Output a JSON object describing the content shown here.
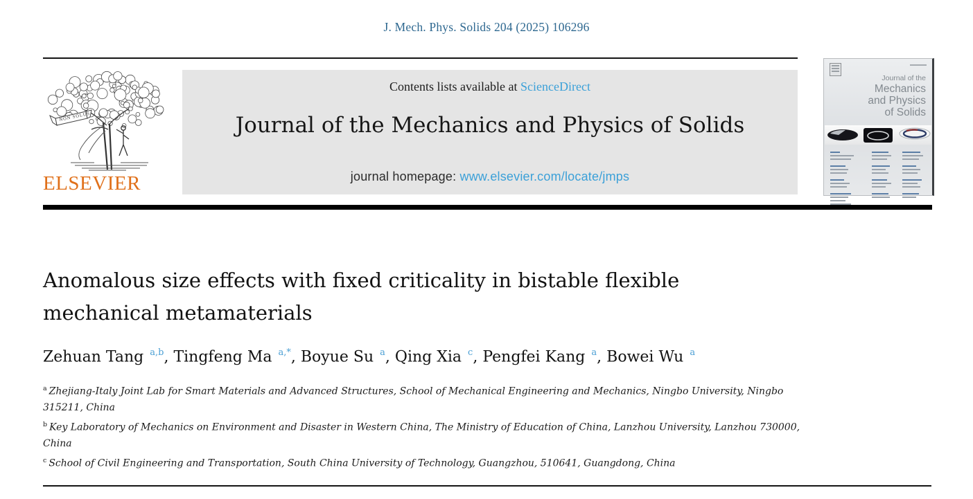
{
  "page": {
    "citation": "J. Mech. Phys. Solids 204 (2025) 106296"
  },
  "banner": {
    "contents_prefix": "Contents lists available at ",
    "sciencedirect_label": "ScienceDirect",
    "journal_title": "Journal of the Mechanics and Physics of Solids",
    "homepage_prefix": "journal homepage: ",
    "homepage_url": "www.elsevier.com/locate/jmps"
  },
  "publisher": {
    "name": "ELSEVIER",
    "motto": "NON SOLUS"
  },
  "cover": {
    "title_lines": [
      "Journal of the",
      "Mechanics",
      "and Physics",
      "of Solids"
    ]
  },
  "article": {
    "title": "Anomalous size effects with fixed criticality in bistable flexible mechanical metamaterials",
    "title_lines": [
      "Anomalous size effects with fixed criticality in bistable flexible",
      "mechanical metamaterials"
    ],
    "authors": [
      {
        "name": "Zehuan Tang",
        "sup": "a,b"
      },
      {
        "name": "Tingfeng Ma",
        "sup": "a,*"
      },
      {
        "name": "Boyue Su",
        "sup": "a"
      },
      {
        "name": "Qing Xia",
        "sup": "c"
      },
      {
        "name": "Pengfei Kang",
        "sup": "a"
      },
      {
        "name": "Bowei Wu",
        "sup": "a"
      }
    ],
    "affiliations": [
      {
        "label": "a",
        "text": "Zhejiang-Italy Joint Lab for Smart Materials and Advanced Structures, School of Mechanical Engineering and Mechanics, Ningbo University, Ningbo 315211, China"
      },
      {
        "label": "b",
        "text": "Key Laboratory of Mechanics on Environment and Disaster in Western China, The Ministry of Education of China, Lanzhou University, Lanzhou 730000, China"
      },
      {
        "label": "c",
        "text": "School of Civil Engineering and Transportation, South China University of Technology, Guangzhou, 510641, Guangdong, China"
      }
    ]
  },
  "colors": {
    "citation_blue": "#2e6890",
    "link_blue": "#3ba0d8",
    "superscript_blue": "#4b9fd4",
    "elsevier_orange": "#e0701a",
    "banner_gray": "#e5e5e5",
    "rule_black": "#000000"
  }
}
